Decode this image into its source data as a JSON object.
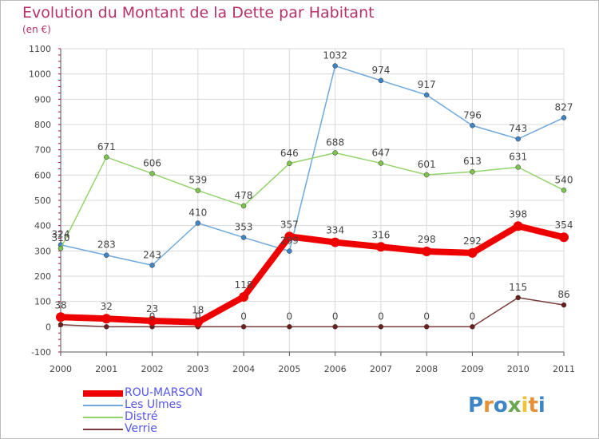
{
  "header": {
    "title": "Evolution du Montant de la Dette par Habitant",
    "subtitle": "(en €)"
  },
  "colors": {
    "title": "#b5316a",
    "grid": "#d8d8d8",
    "axis": "#555555",
    "tick_minor": "#c0003c",
    "label": "#444444"
  },
  "chart_data": {
    "type": "line",
    "title": "Evolution du Montant de la Dette par Habitant",
    "subtitle": "(en €)",
    "xlabel": "",
    "ylabel": "",
    "x": [
      "2000",
      "2001",
      "2002",
      "2003",
      "2004",
      "2005",
      "2006",
      "2007",
      "2008",
      "2009",
      "2010",
      "2011"
    ],
    "ylim": [
      -100,
      1100
    ],
    "yticks": [
      -100,
      0,
      100,
      200,
      300,
      400,
      500,
      600,
      700,
      800,
      900,
      1000,
      1100
    ],
    "grid": true,
    "legend_position": "bottom-left",
    "series": [
      {
        "name": "ROU-MARSON",
        "color": "#ee0000",
        "marker_color": "#ee0000",
        "emphasis": true,
        "values": [
          38,
          32,
          23,
          18,
          118,
          357,
          334,
          316,
          298,
          292,
          398,
          354
        ],
        "labels": [
          "38",
          "32",
          "23",
          "18",
          "118",
          "357",
          "334",
          "316",
          "298",
          "292",
          "398",
          "354"
        ]
      },
      {
        "name": "Les Ulmes",
        "color": "#6fa8dc",
        "marker_color": "#3d85c6",
        "emphasis": false,
        "values": [
          324,
          283,
          243,
          410,
          353,
          299,
          1032,
          974,
          917,
          796,
          743,
          827
        ],
        "labels": [
          "324",
          "283",
          "243",
          "410",
          "353",
          "299",
          "1032",
          "974",
          "917",
          "796",
          "743",
          "827"
        ]
      },
      {
        "name": "Distré",
        "color": "#93d36b",
        "marker_color": "#7cc44c",
        "emphasis": false,
        "values": [
          310,
          671,
          606,
          539,
          478,
          646,
          688,
          647,
          601,
          613,
          631,
          540
        ],
        "labels": [
          "310",
          "671",
          "606",
          "539",
          "478",
          "646",
          "688",
          "647",
          "601",
          "613",
          "631",
          "540"
        ]
      },
      {
        "name": "Verrie",
        "color": "#7b3a3a",
        "marker_color": "#6b2020",
        "emphasis": false,
        "values": [
          8,
          0,
          0,
          0,
          0,
          0,
          0,
          0,
          0,
          0,
          115,
          86
        ],
        "labels": [
          "",
          "",
          "0",
          "0",
          "0",
          "0",
          "0",
          "0",
          "0",
          "0",
          "115",
          "86"
        ]
      }
    ]
  },
  "legend": {
    "items": [
      {
        "label": "ROU-MARSON",
        "color": "#ee0000",
        "text_color": "#5555ee",
        "thick": true
      },
      {
        "label": "Les Ulmes",
        "color": "#6fa8dc",
        "text_color": "#5555ee",
        "thick": false
      },
      {
        "label": "Distré",
        "color": "#93d36b",
        "text_color": "#5555ee",
        "thick": false
      },
      {
        "label": "Verrie",
        "color": "#7b3a3a",
        "text_color": "#5555ee",
        "thick": false
      }
    ]
  },
  "logo": {
    "text": "Proxiti",
    "letters": [
      "P",
      "r",
      "o",
      "x",
      "i",
      "t",
      "i"
    ],
    "letter_colors": [
      "#3d85c6",
      "#e69138",
      "#3d85c6",
      "#6aa84f",
      "#f1c232",
      "#e69138",
      "#3d85c6"
    ]
  }
}
